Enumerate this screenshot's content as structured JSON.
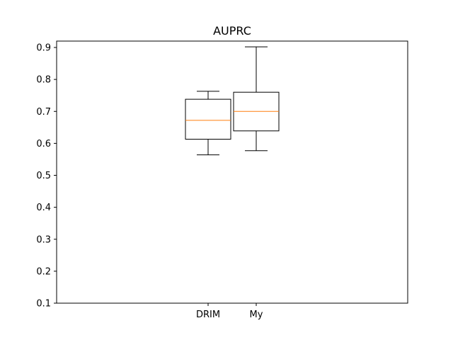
{
  "chart_data": {
    "type": "boxplot",
    "title": "AUPRC",
    "xlabel": "",
    "ylabel": "",
    "categories": [
      "DRIM",
      "My"
    ],
    "boxes": [
      {
        "label": "DRIM",
        "whisker_low": 0.564,
        "q1": 0.613,
        "median": 0.672,
        "q3": 0.738,
        "whisker_high": 0.763
      },
      {
        "label": "My",
        "whisker_low": 0.577,
        "q1": 0.639,
        "median": 0.7,
        "q3": 0.76,
        "whisker_high": 0.902
      }
    ],
    "ylim": [
      0.1,
      0.92
    ],
    "yticks": [
      "0.1",
      "0.2",
      "0.3",
      "0.4",
      "0.5",
      "0.6",
      "0.7",
      "0.8",
      "0.9"
    ],
    "grid": false,
    "colors": {
      "box": "#000000",
      "median": "#ff7f0e",
      "background": "#ffffff"
    }
  }
}
